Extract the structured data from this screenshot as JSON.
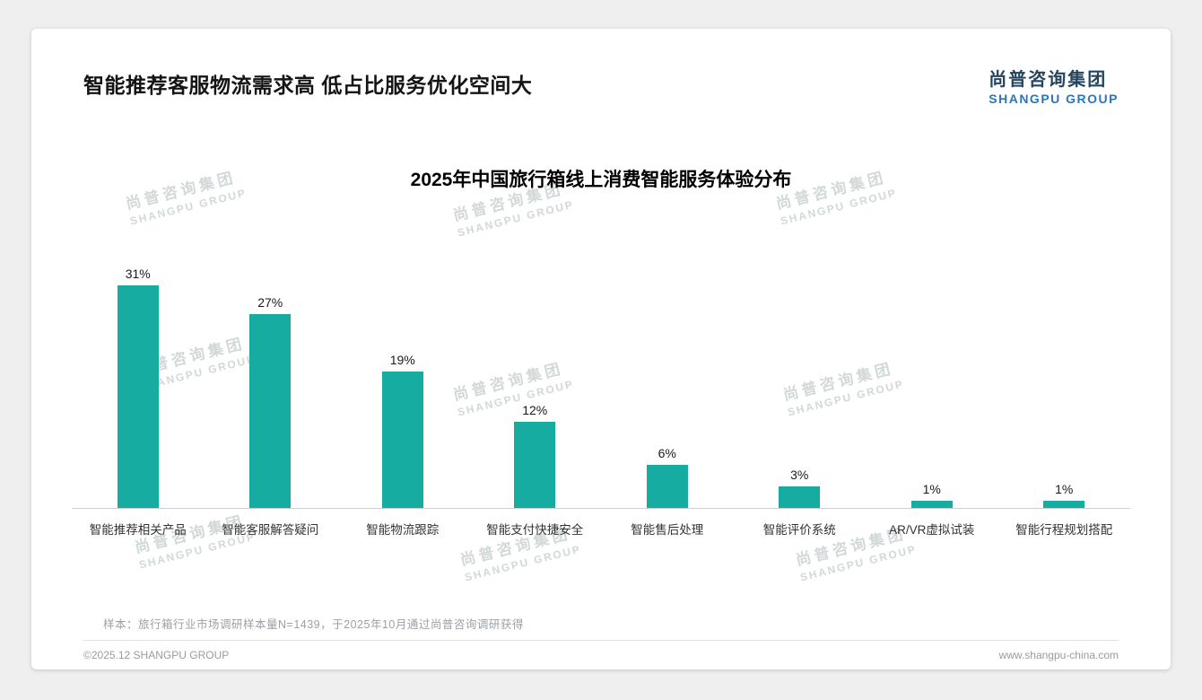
{
  "page": {
    "title": "智能推荐客服物流需求高 低占比服务优化空间大",
    "logo": {
      "cn": "尚普咨询集团",
      "en": "SHANGPU GROUP"
    },
    "watermark": {
      "cn": "尚普咨询集团",
      "en": "SHANGPU GROUP"
    },
    "note": "样本：旅行箱行业市场调研样本量N=1439，于2025年10月通过尚普咨询调研获得",
    "footer": {
      "left": "©2025.12 SHANGPU GROUP",
      "right": "www.shangpu-china.com"
    }
  },
  "chart_data": {
    "type": "bar",
    "title": "2025年中国旅行箱线上消费智能服务体验分布",
    "categories": [
      "智能推荐相关产品",
      "智能客服解答疑问",
      "智能物流跟踪",
      "智能支付快捷安全",
      "智能售后处理",
      "智能评价系统",
      "AR/VR虚拟试装",
      "智能行程规划搭配"
    ],
    "values": [
      31,
      27,
      19,
      12,
      6,
      3,
      1,
      1
    ],
    "unit": "%",
    "xlabel": "",
    "ylabel": "",
    "ylim": [
      0,
      35
    ],
    "grid": false,
    "legend": false,
    "value_labels": true,
    "bar_color": "#17aca1",
    "axis_color": "#cfcfcf"
  }
}
